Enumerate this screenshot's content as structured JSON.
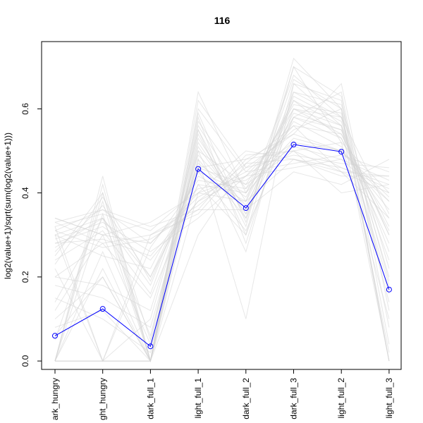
{
  "chart_data": {
    "type": "line",
    "title": "116",
    "xlabel": "",
    "ylabel": "log2(value+1)/sqrt(sum(log2(value+1)))",
    "categories": [
      "dark_hungry",
      "light_hungry",
      "dark_full_1",
      "light_full_1",
      "dark_full_2",
      "dark_full_3",
      "light_full_2",
      "light_full_3"
    ],
    "category_labels_visible": [
      "ark_hungry",
      "ght_hungry",
      "dark_full_1",
      "light_full_1",
      "dark_full_2",
      "dark_full_3",
      "light_full_2",
      "light_full_3"
    ],
    "ylim": [
      -0.02,
      0.76
    ],
    "yticks": [
      0.0,
      0.2,
      0.4,
      0.6
    ],
    "ytick_labels": [
      "0.0",
      "0.2",
      "0.4",
      "0.6"
    ],
    "grid": false,
    "highlight_series": {
      "values": [
        0.06,
        0.124,
        0.035,
        0.457,
        0.364,
        0.515,
        0.498,
        0.17
      ],
      "color": "#0000FF",
      "marker": "open-circle"
    },
    "background_series": {
      "color": "#D3D3D3",
      "description_count": 40,
      "values": [
        [
          0.3,
          0.34,
          0.2,
          0.45,
          0.4,
          0.62,
          0.56,
          0.0
        ],
        [
          0.0,
          0.0,
          0.0,
          0.5,
          0.42,
          0.6,
          0.58,
          0.35
        ],
        [
          0.34,
          0.3,
          0.28,
          0.4,
          0.38,
          0.48,
          0.45,
          0.4
        ],
        [
          0.25,
          0.4,
          0.05,
          0.55,
          0.3,
          0.7,
          0.52,
          0.1
        ],
        [
          0.0,
          0.35,
          0.0,
          0.6,
          0.45,
          0.55,
          0.6,
          0.0
        ],
        [
          0.32,
          0.0,
          0.3,
          0.35,
          0.48,
          0.5,
          0.4,
          0.42
        ],
        [
          0.1,
          0.2,
          0.0,
          0.52,
          0.35,
          0.58,
          0.55,
          0.3
        ],
        [
          0.28,
          0.32,
          0.24,
          0.38,
          0.44,
          0.46,
          0.48,
          0.38
        ],
        [
          0.0,
          0.44,
          0.0,
          0.48,
          0.1,
          0.66,
          0.62,
          0.0
        ],
        [
          0.2,
          0.28,
          0.15,
          0.42,
          0.4,
          0.52,
          0.5,
          0.36
        ],
        [
          0.33,
          0.36,
          0.32,
          0.36,
          0.36,
          0.45,
          0.42,
          0.48
        ],
        [
          0.15,
          0.1,
          0.02,
          0.58,
          0.28,
          0.64,
          0.58,
          0.2
        ],
        [
          0.0,
          0.0,
          0.0,
          0.62,
          0.46,
          0.54,
          0.66,
          0.12
        ],
        [
          0.3,
          0.25,
          0.22,
          0.44,
          0.38,
          0.6,
          0.54,
          0.32
        ],
        [
          0.05,
          0.38,
          0.0,
          0.3,
          0.47,
          0.56,
          0.45,
          0.34
        ],
        [
          0.34,
          0.3,
          0.33,
          0.4,
          0.5,
          0.48,
          0.44,
          0.44
        ],
        [
          0.0,
          0.22,
          0.0,
          0.54,
          0.32,
          0.72,
          0.6,
          0.0
        ],
        [
          0.27,
          0.34,
          0.18,
          0.46,
          0.42,
          0.5,
          0.52,
          0.4
        ],
        [
          0.22,
          0.0,
          0.1,
          0.5,
          0.26,
          0.66,
          0.56,
          0.18
        ],
        [
          0.31,
          0.36,
          0.28,
          0.39,
          0.45,
          0.47,
          0.49,
          0.45
        ],
        [
          0.0,
          0.4,
          0.0,
          0.64,
          0.4,
          0.58,
          0.64,
          0.08
        ],
        [
          0.18,
          0.15,
          0.08,
          0.48,
          0.34,
          0.62,
          0.53,
          0.28
        ],
        [
          0.29,
          0.33,
          0.26,
          0.34,
          0.44,
          0.52,
          0.46,
          0.42
        ],
        [
          0.12,
          0.3,
          0.04,
          0.56,
          0.38,
          0.68,
          0.58,
          0.14
        ],
        [
          0.0,
          0.0,
          0.0,
          0.46,
          0.48,
          0.54,
          0.5,
          0.38
        ],
        [
          0.26,
          0.37,
          0.2,
          0.42,
          0.3,
          0.6,
          0.56,
          0.26
        ],
        [
          0.33,
          0.28,
          0.3,
          0.37,
          0.46,
          0.49,
          0.47,
          0.46
        ],
        [
          0.08,
          0.12,
          0.0,
          0.53,
          0.36,
          0.64,
          0.61,
          0.22
        ],
        [
          0.0,
          0.42,
          0.0,
          0.4,
          0.44,
          0.56,
          0.54,
          0.3
        ],
        [
          0.24,
          0.31,
          0.16,
          0.47,
          0.39,
          0.57,
          0.51,
          0.34
        ],
        [
          0.32,
          0.35,
          0.31,
          0.41,
          0.43,
          0.51,
          0.48,
          0.43
        ],
        [
          0.0,
          0.26,
          0.0,
          0.59,
          0.33,
          0.7,
          0.63,
          0.04
        ],
        [
          0.2,
          0.18,
          0.12,
          0.49,
          0.37,
          0.59,
          0.55,
          0.24
        ],
        [
          0.3,
          0.0,
          0.27,
          0.43,
          0.41,
          0.53,
          0.5,
          0.39
        ],
        [
          0.14,
          0.34,
          0.06,
          0.51,
          0.35,
          0.63,
          0.57,
          0.16
        ],
        [
          0.28,
          0.29,
          0.25,
          0.38,
          0.47,
          0.48,
          0.46,
          0.41
        ],
        [
          0.0,
          0.0,
          0.0,
          0.57,
          0.41,
          0.61,
          0.59,
          0.02
        ],
        [
          0.23,
          0.39,
          0.19,
          0.45,
          0.31,
          0.58,
          0.53,
          0.31
        ],
        [
          0.31,
          0.27,
          0.29,
          0.36,
          0.49,
          0.5,
          0.45,
          0.44
        ],
        [
          0.06,
          0.2,
          0.0,
          0.55,
          0.34,
          0.67,
          0.6,
          0.19
        ]
      ]
    }
  }
}
